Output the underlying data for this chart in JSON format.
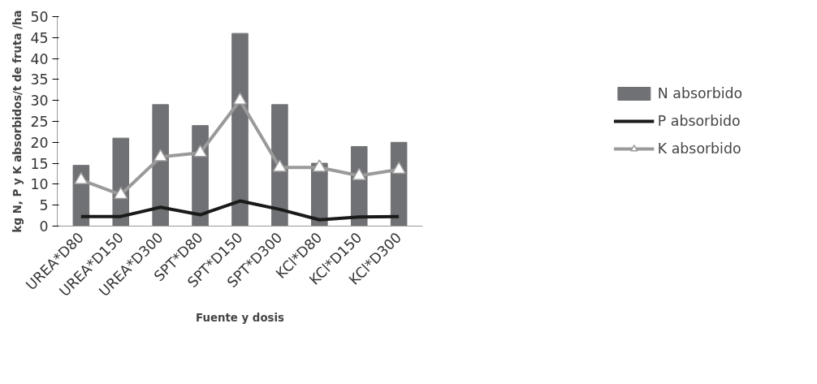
{
  "chart_data": {
    "type": "bar",
    "xlabel": "Fuente y dosis",
    "ylabel": "kg N, P y K absorbidos/t de fruta /ha",
    "categories": [
      "UREA*D80",
      "UREA*D150",
      "UREA*D300",
      "SPT*D80",
      "SPT*D150",
      "SPT*D300",
      "KCl*D80",
      "KCl*D150",
      "KCl*D300"
    ],
    "series": [
      {
        "name": "N absorbido",
        "color": "#707174",
        "values": [
          14.5,
          21,
          29,
          24,
          46,
          29,
          15,
          19,
          20
        ]
      },
      {
        "name": "P absorbido",
        "type": "line",
        "color": "#1a1a1a",
        "marker": "none",
        "values": [
          2.3,
          2.3,
          4.5,
          2.7,
          6,
          4,
          1.5,
          2.2,
          2.3
        ]
      },
      {
        "name": "K absorbido",
        "type": "line",
        "color": "#9a9a9a",
        "marker": "triangle",
        "values": [
          11,
          7.5,
          16.5,
          17.5,
          30,
          14,
          14,
          12,
          13.5
        ]
      }
    ],
    "ylim": [
      0,
      50
    ],
    "yticks": [
      0,
      5,
      10,
      15,
      20,
      25,
      30,
      35,
      40,
      45,
      50
    ],
    "grid": false,
    "legend": "right"
  }
}
